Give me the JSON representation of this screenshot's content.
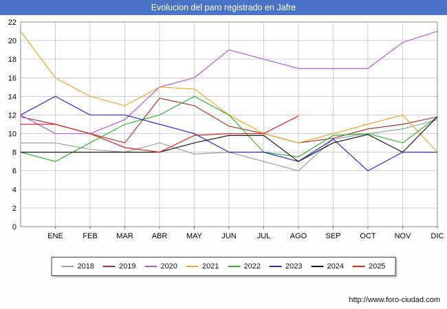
{
  "title": "Evolucion del paro registrado en Jafre",
  "footer": {
    "url": "http://www.foro-ciudad.com"
  },
  "colors": {
    "titlebar": "#4a74c8",
    "grid": "#cccccc",
    "plot_border": "#888888",
    "axis_text": "#000000",
    "plot_background": "#ffffff"
  },
  "chart_data": {
    "type": "line",
    "title": "Evolucion del paro registrado en Jafre",
    "months": [
      "ENE",
      "FEB",
      "MAR",
      "ABR",
      "MAY",
      "JUN",
      "JUL",
      "AGO",
      "SEP",
      "OCT",
      "NOV",
      "DIC"
    ],
    "ylim": [
      0,
      22
    ],
    "ytick_step": 2,
    "grid": true,
    "legend_position": "bottom",
    "series": [
      {
        "name": "2018",
        "color": "#9e9e9e",
        "values": [
          9,
          9,
          8.3,
          8,
          9,
          7.8,
          8,
          7,
          6,
          9.4,
          10,
          10.5,
          11.5
        ]
      },
      {
        "name": "2019",
        "color": "#aa3333",
        "values": [
          11.8,
          11,
          10,
          9,
          13.8,
          13,
          10.8,
          10,
          9,
          9.5,
          10.5,
          11,
          11.8
        ]
      },
      {
        "name": "2020",
        "color": "#bb55dd",
        "values": [
          12,
          10,
          10,
          11.5,
          15,
          16,
          19,
          18,
          17,
          17,
          17,
          19.8,
          21
        ]
      },
      {
        "name": "2021",
        "color": "#f5a623",
        "values": [
          21,
          16,
          14,
          13,
          15,
          14.8,
          12,
          10,
          9,
          10,
          11,
          12,
          8
        ]
      },
      {
        "name": "2022",
        "color": "#2db82d",
        "values": [
          8,
          7,
          9,
          11,
          12,
          14,
          12,
          8,
          7.5,
          9.8,
          10,
          9,
          11.8
        ]
      },
      {
        "name": "2023",
        "color": "#2929d6",
        "values": [
          12,
          14,
          12,
          12,
          11,
          10,
          8,
          8,
          7,
          9.4,
          6,
          8,
          8
        ]
      },
      {
        "name": "2024",
        "color": "#161616",
        "values": [
          8,
          8,
          8,
          8,
          8,
          9,
          9.8,
          9.8,
          7,
          9,
          9.9,
          8,
          11.8
        ]
      },
      {
        "name": "2025",
        "color": "#e02020",
        "values": [
          11,
          11,
          10,
          8.5,
          8,
          9.8,
          10,
          10,
          11.9
        ]
      }
    ]
  }
}
